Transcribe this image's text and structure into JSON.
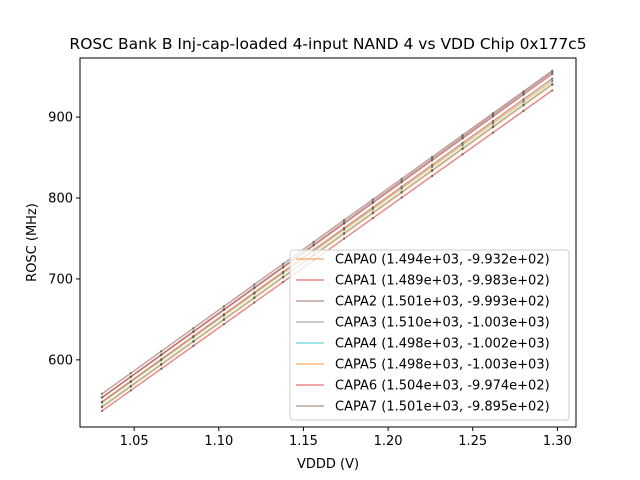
{
  "chart_data": {
    "type": "line",
    "title": "ROSC Bank B Inj-cap-loaded 4-input NAND 4 vs VDD Chip 0x177c5",
    "xlabel": "VDDD (V)",
    "ylabel": "ROSC (MHz)",
    "xlim": [
      1.018,
      1.311
    ],
    "ylim": [
      517,
      973
    ],
    "xticks": [
      1.05,
      1.1,
      1.15,
      1.2,
      1.25,
      1.3
    ],
    "xtick_labels": [
      "1.05",
      "1.10",
      "1.15",
      "1.20",
      "1.25",
      "1.30"
    ],
    "yticks": [
      600,
      700,
      800,
      900
    ],
    "ytick_labels": [
      "600",
      "700",
      "800",
      "900"
    ],
    "x": [
      1.031,
      1.048,
      1.066,
      1.085,
      1.103,
      1.121,
      1.138,
      1.156,
      1.174,
      1.191,
      1.208,
      1.226,
      1.244,
      1.262,
      1.28,
      1.297
    ],
    "grid": false,
    "legend_position": "lower right",
    "series": [
      {
        "name": "CAPA0 (1.494e+03, -9.932e+02)",
        "slope": 1494,
        "intercept": -993.2,
        "color": "#ff7f0e"
      },
      {
        "name": "CAPA1 (1.489e+03, -9.983e+02)",
        "slope": 1489,
        "intercept": -998.3,
        "color": "#d62728"
      },
      {
        "name": "CAPA2 (1.501e+03, -9.993e+02)",
        "slope": 1501,
        "intercept": -999.3,
        "color": "#8c564b"
      },
      {
        "name": "CAPA3 (1.510e+03, -1.003e+03)",
        "slope": 1510,
        "intercept": -1003,
        "color": "#7f7f7f"
      },
      {
        "name": "CAPA4 (1.498e+03, -1.002e+03)",
        "slope": 1498,
        "intercept": -1002,
        "color": "#17becf"
      },
      {
        "name": "CAPA5 (1.498e+03, -1.003e+03)",
        "slope": 1498,
        "intercept": -1003,
        "color": "#ff7f0e"
      },
      {
        "name": "CAPA6 (1.504e+03, -9.974e+02)",
        "slope": 1504,
        "intercept": -997.4,
        "color": "#d62728"
      },
      {
        "name": "CAPA7 (1.501e+03, -9.895e+02)",
        "slope": 1501,
        "intercept": -989.5,
        "color": "#8c564b"
      }
    ]
  }
}
